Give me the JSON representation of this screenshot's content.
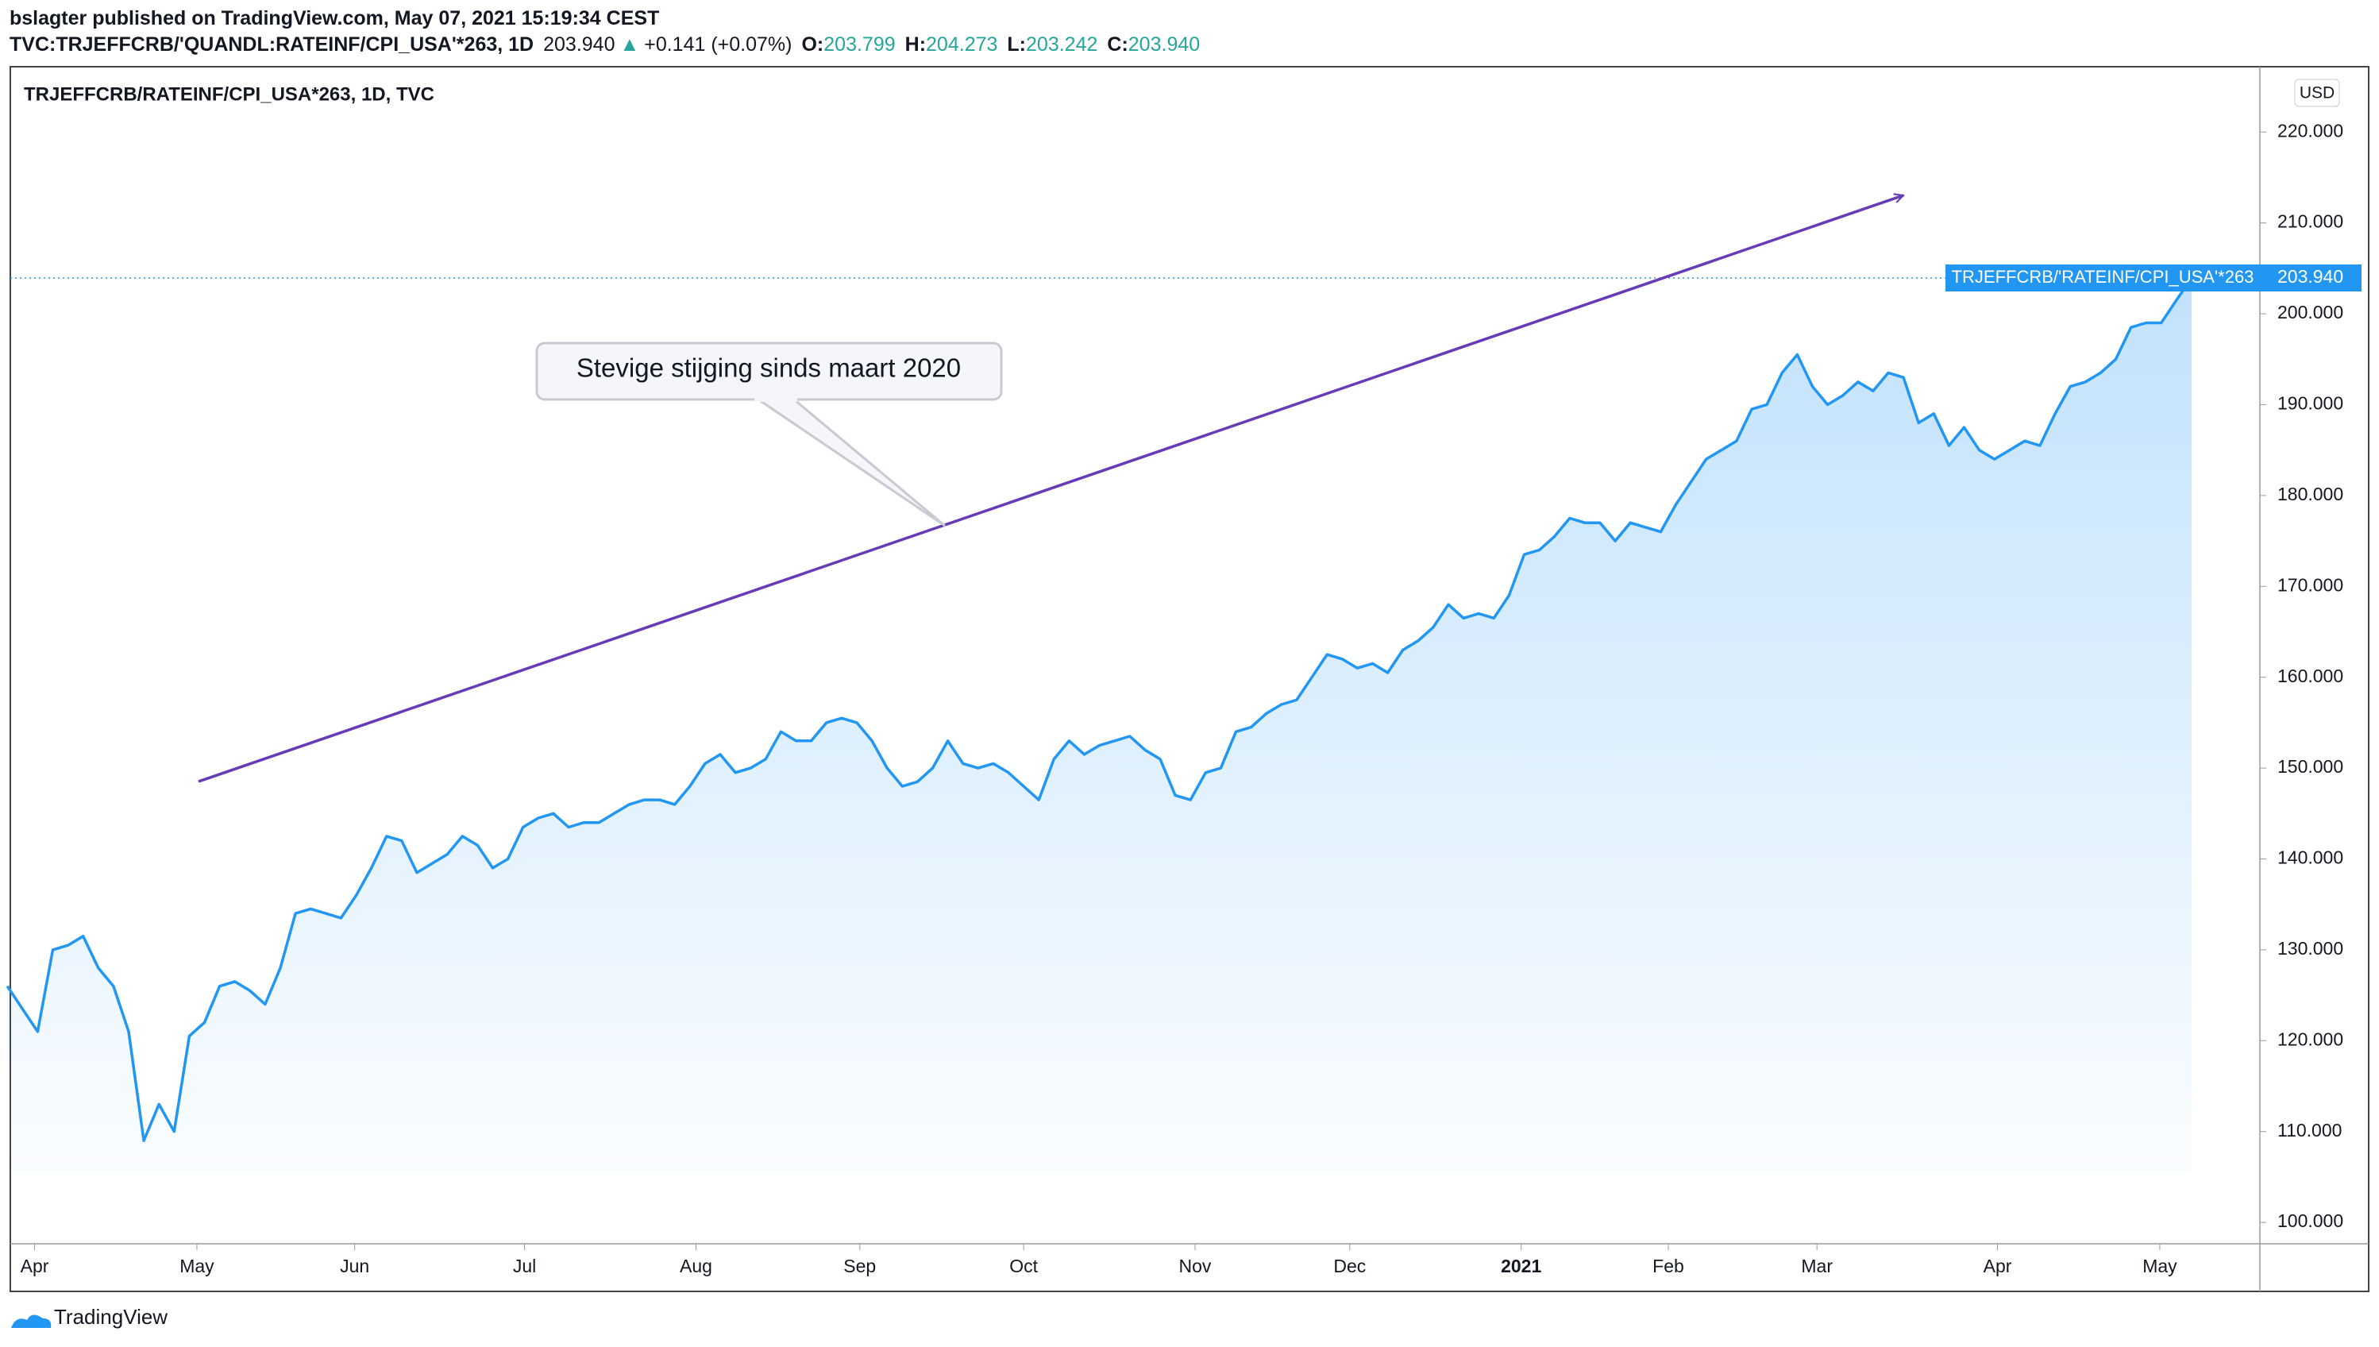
{
  "header": {
    "published": "bslagter published on TradingView.com, May 07, 2021 15:19:34 CEST",
    "symbol": "TVC:TRJEFFCRB/'QUANDL:RATEINF/CPI_USA'*263, 1D",
    "price": "203.940",
    "arrow": "▲",
    "change": "+0.141 (+0.07%)",
    "open_label": "O:",
    "open": "203.799",
    "high_label": "H:",
    "high": "204.273",
    "low_label": "L:",
    "low": "203.242",
    "close_label": "C:",
    "close": "203.940"
  },
  "footer": "TradingView",
  "chart_data": {
    "type": "line",
    "title": "TRJEFFCRB/RATEINF/CPI_USA*263, 1D, TVC",
    "y_unit": "USD",
    "annotation": "Stevige stijging sinds maart 2020",
    "series": [
      {
        "name": "TRJEFFCRB/'RATEINF/CPI_USA'*263",
        "color": "#2196f3",
        "values": [
          126,
          123.5,
          121,
          130,
          130.5,
          131.5,
          128,
          126,
          121,
          109,
          113,
          110,
          120.5,
          122,
          126,
          126.5,
          125.5,
          124,
          128,
          134,
          134.5,
          134,
          133.5,
          136,
          139,
          142.5,
          142,
          138.5,
          139.5,
          140.5,
          142.5,
          141.5,
          139,
          140,
          143.5,
          144.5,
          145,
          143.5,
          144,
          144,
          145,
          146,
          146.5,
          146.5,
          146,
          148,
          150.5,
          151.5,
          149.5,
          150,
          151,
          154,
          153,
          153,
          155,
          155.5,
          155,
          153,
          150,
          148,
          148.5,
          150,
          153,
          150.5,
          150,
          150.5,
          149.5,
          148,
          146.5,
          151,
          153,
          151.5,
          152.5,
          153,
          153.5,
          152,
          151,
          147,
          146.5,
          149.5,
          150,
          154,
          154.5,
          156,
          157,
          157.5,
          160,
          162.5,
          162,
          161,
          161.5,
          160.5,
          163,
          164,
          165.5,
          168,
          166.5,
          167,
          166.5,
          169,
          173.5,
          174,
          175.5,
          177.5,
          177,
          177,
          175,
          177,
          176.5,
          176,
          179,
          181.5,
          184,
          185,
          186,
          189.5,
          190,
          193.5,
          195.5,
          192,
          190,
          191,
          192.5,
          191.5,
          193.5,
          193,
          188,
          189,
          185.5,
          187.5,
          185,
          184,
          185,
          186,
          185.5,
          189,
          192,
          192.5,
          193.5,
          195,
          198.5,
          199,
          199,
          201.5,
          203.94
        ]
      }
    ],
    "xlim": [
      0.2,
      148.5
    ],
    "xticks": [
      {
        "value": 1.8,
        "label": "Apr"
      },
      {
        "value": 12.5,
        "label": "May"
      },
      {
        "value": 22.9,
        "label": "Jun"
      },
      {
        "value": 34.1,
        "label": "Jul"
      },
      {
        "value": 45.4,
        "label": "Aug"
      },
      {
        "value": 56.2,
        "label": "Sep"
      },
      {
        "value": 67,
        "label": "Oct"
      },
      {
        "value": 78.3,
        "label": "Nov"
      },
      {
        "value": 88.5,
        "label": "Dec"
      },
      {
        "value": 99.8,
        "label": "2021"
      },
      {
        "value": 109.5,
        "label": "Feb"
      },
      {
        "value": 119.3,
        "label": "Mar"
      },
      {
        "value": 131.2,
        "label": "Apr"
      },
      {
        "value": 141.9,
        "label": "May"
      }
    ],
    "ylim": [
      97.65,
      227.19
    ],
    "yticks": [
      {
        "value": 100,
        "label": "100.000"
      },
      {
        "value": 110,
        "label": "110.000"
      },
      {
        "value": 120,
        "label": "120.000"
      },
      {
        "value": 130,
        "label": "130.000"
      },
      {
        "value": 140,
        "label": "140.000"
      },
      {
        "value": 150,
        "label": "150.000"
      },
      {
        "value": 160,
        "label": "160.000"
      },
      {
        "value": 170,
        "label": "170.000"
      },
      {
        "value": 180,
        "label": "180.000"
      },
      {
        "value": 190,
        "label": "190.000"
      },
      {
        "value": 200,
        "label": "200.000"
      },
      {
        "value": 210,
        "label": "210.000"
      },
      {
        "value": 220,
        "label": "220.000"
      }
    ],
    "grid": false
  }
}
